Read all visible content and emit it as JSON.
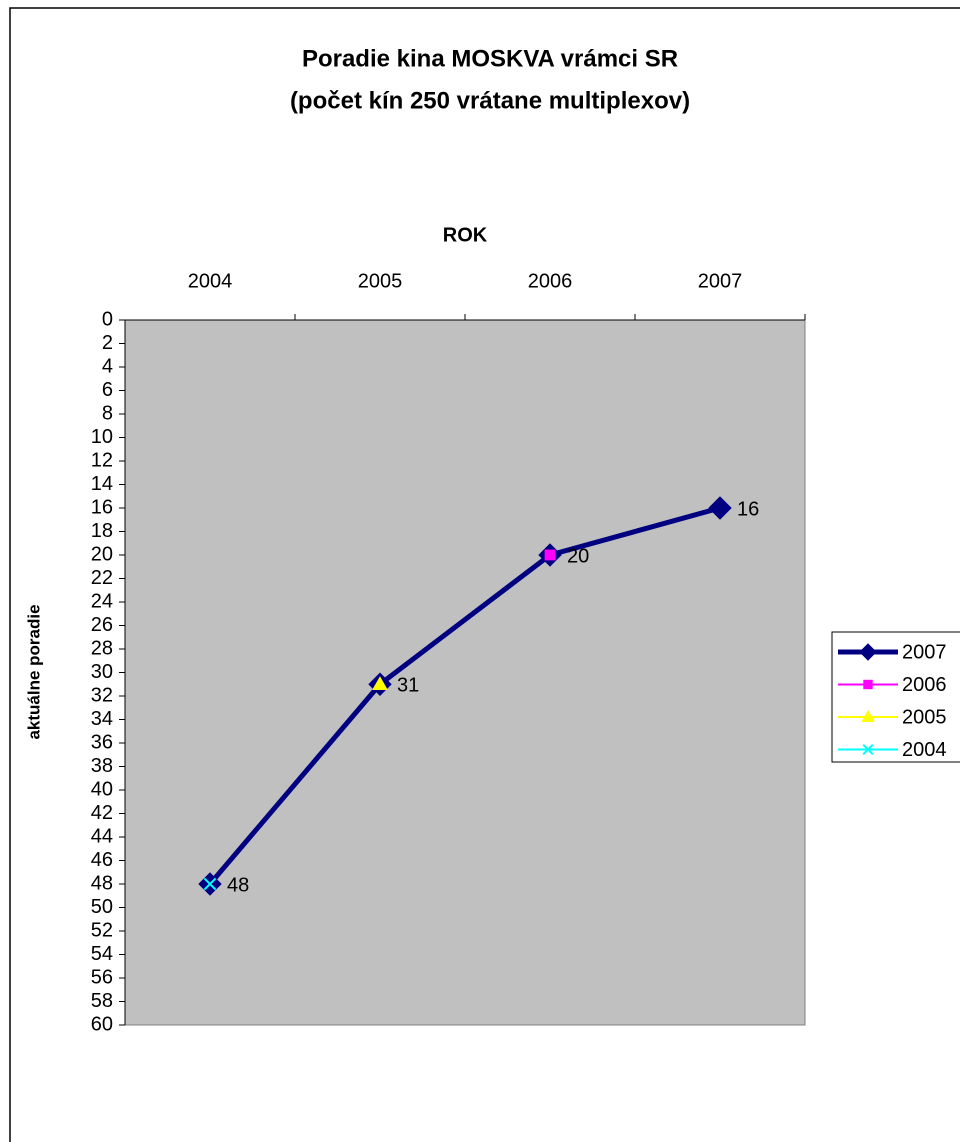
{
  "chart_data": {
    "type": "line",
    "title": "Poradie kina MOSKVA vrámci SR",
    "subtitle": "(počet kín 250 vrátane multiplexov)",
    "x_label": "ROK",
    "y_label": "aktuálne poradie",
    "categories": [
      "2004",
      "2005",
      "2006",
      "2007"
    ],
    "series": [
      {
        "name": "2007",
        "color": "#000080",
        "marker": "diamond",
        "values": [
          48,
          31,
          20,
          16
        ],
        "data_labels": true
      },
      {
        "name": "2006",
        "color": "#ff00ff",
        "marker": "square",
        "values": [
          null,
          null,
          20,
          null
        ]
      },
      {
        "name": "2005",
        "color": "#ffff00",
        "marker": "triangle",
        "values": [
          null,
          31,
          null,
          null
        ]
      },
      {
        "name": "2004",
        "color": "#00ffff",
        "marker": "x",
        "values": [
          48,
          null,
          null,
          null
        ]
      }
    ],
    "ylim": [
      0,
      60
    ],
    "yticks": [
      0,
      2,
      4,
      6,
      8,
      10,
      12,
      14,
      16,
      18,
      20,
      22,
      24,
      26,
      28,
      30,
      32,
      34,
      36,
      38,
      40,
      42,
      44,
      46,
      48,
      50,
      52,
      54,
      56,
      58,
      60
    ],
    "y_inverted": true,
    "x_axis_position": "top",
    "grid": false,
    "plot_background": "#c0c0c0",
    "legend": "right"
  }
}
